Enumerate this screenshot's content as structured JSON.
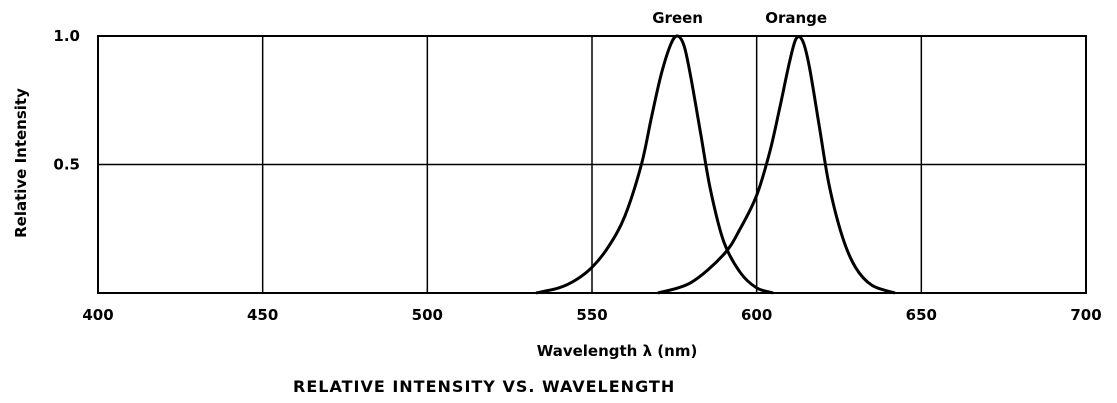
{
  "chart_data": {
    "type": "line",
    "title": "RELATIVE INTENSITY VS. WAVELENGTH",
    "xlabel": "Wavelength λ (nm)",
    "ylabel": "Relative Intensity",
    "xlim": [
      400,
      700
    ],
    "ylim": [
      0,
      1.0
    ],
    "x_ticks": [
      "400",
      "450",
      "500",
      "550",
      "600",
      "650",
      "700"
    ],
    "x_tick_values": [
      400,
      450,
      500,
      550,
      600,
      650,
      700
    ],
    "y_ticks": [
      "0.5",
      "1.0"
    ],
    "y_tick_values": [
      0.5,
      1.0
    ],
    "grid": true,
    "series": [
      {
        "name": "Green",
        "x": [
          533,
          540,
          545,
          550,
          555,
          560,
          565,
          568,
          571,
          574,
          576,
          578,
          580,
          583,
          586,
          590,
          595,
          600,
          605
        ],
        "y": [
          0.0,
          0.02,
          0.05,
          0.1,
          0.18,
          0.3,
          0.5,
          0.68,
          0.85,
          0.97,
          1.0,
          0.96,
          0.84,
          0.62,
          0.4,
          0.2,
          0.08,
          0.02,
          0.0
        ]
      },
      {
        "name": "Orange",
        "x": [
          570,
          580,
          590,
          595,
          600,
          604,
          607,
          610,
          612,
          614,
          616,
          619,
          622,
          626,
          630,
          635,
          642
        ],
        "y": [
          0.0,
          0.04,
          0.15,
          0.25,
          0.38,
          0.55,
          0.72,
          0.9,
          0.99,
          0.98,
          0.88,
          0.65,
          0.42,
          0.22,
          0.1,
          0.03,
          0.0
        ]
      }
    ]
  }
}
